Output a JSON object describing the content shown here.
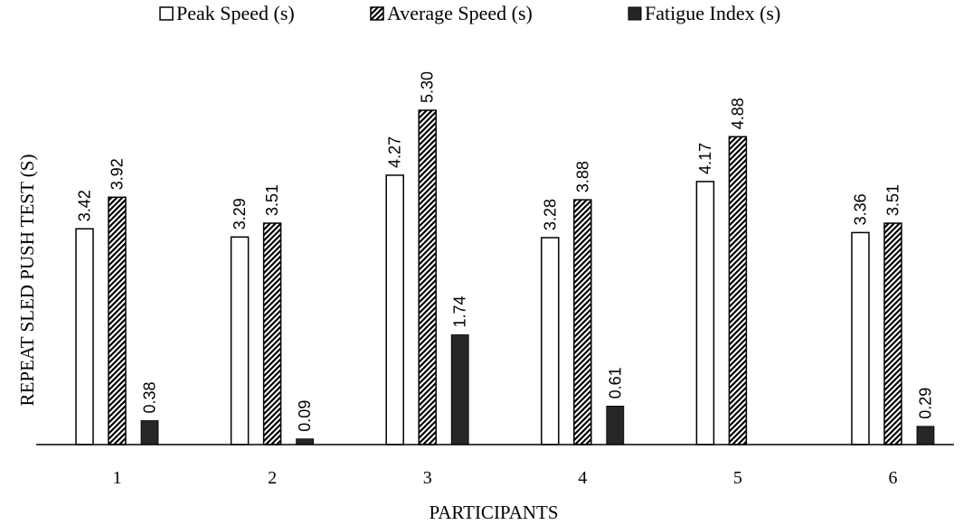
{
  "chart_data": {
    "type": "bar",
    "title": "",
    "xlabel": "PARTICIPANTS",
    "ylabel": "REPEAT SLED PUSH TEST (S)",
    "categories": [
      "1",
      "2",
      "3",
      "4",
      "5",
      "6"
    ],
    "ylim": [
      0,
      5.3
    ],
    "grid": false,
    "legend_position": "top",
    "series": [
      {
        "name": "Peak Speed (s)",
        "pattern": "hollow",
        "color": "#ffffff",
        "values": [
          3.42,
          3.29,
          4.27,
          3.28,
          4.17,
          3.36
        ],
        "labels": [
          "3.42",
          "3.29",
          "4.27",
          "3.28",
          "4.17",
          "3.36"
        ]
      },
      {
        "name": "Average Speed (s)",
        "pattern": "diagonal-hatch",
        "color": "#000000",
        "values": [
          3.92,
          3.51,
          5.3,
          3.88,
          4.88,
          3.51
        ],
        "labels": [
          "3.92",
          "3.51",
          "5.30",
          "3.88",
          "4.88",
          "3.51"
        ]
      },
      {
        "name": "Fatigue Index (s)",
        "pattern": "solid",
        "color": "#262626",
        "values": [
          0.38,
          0.09,
          1.74,
          0.61,
          null,
          0.29
        ],
        "labels": [
          "0.38",
          "0.09",
          "1.74",
          "0.61",
          "",
          "0.29"
        ]
      }
    ]
  }
}
